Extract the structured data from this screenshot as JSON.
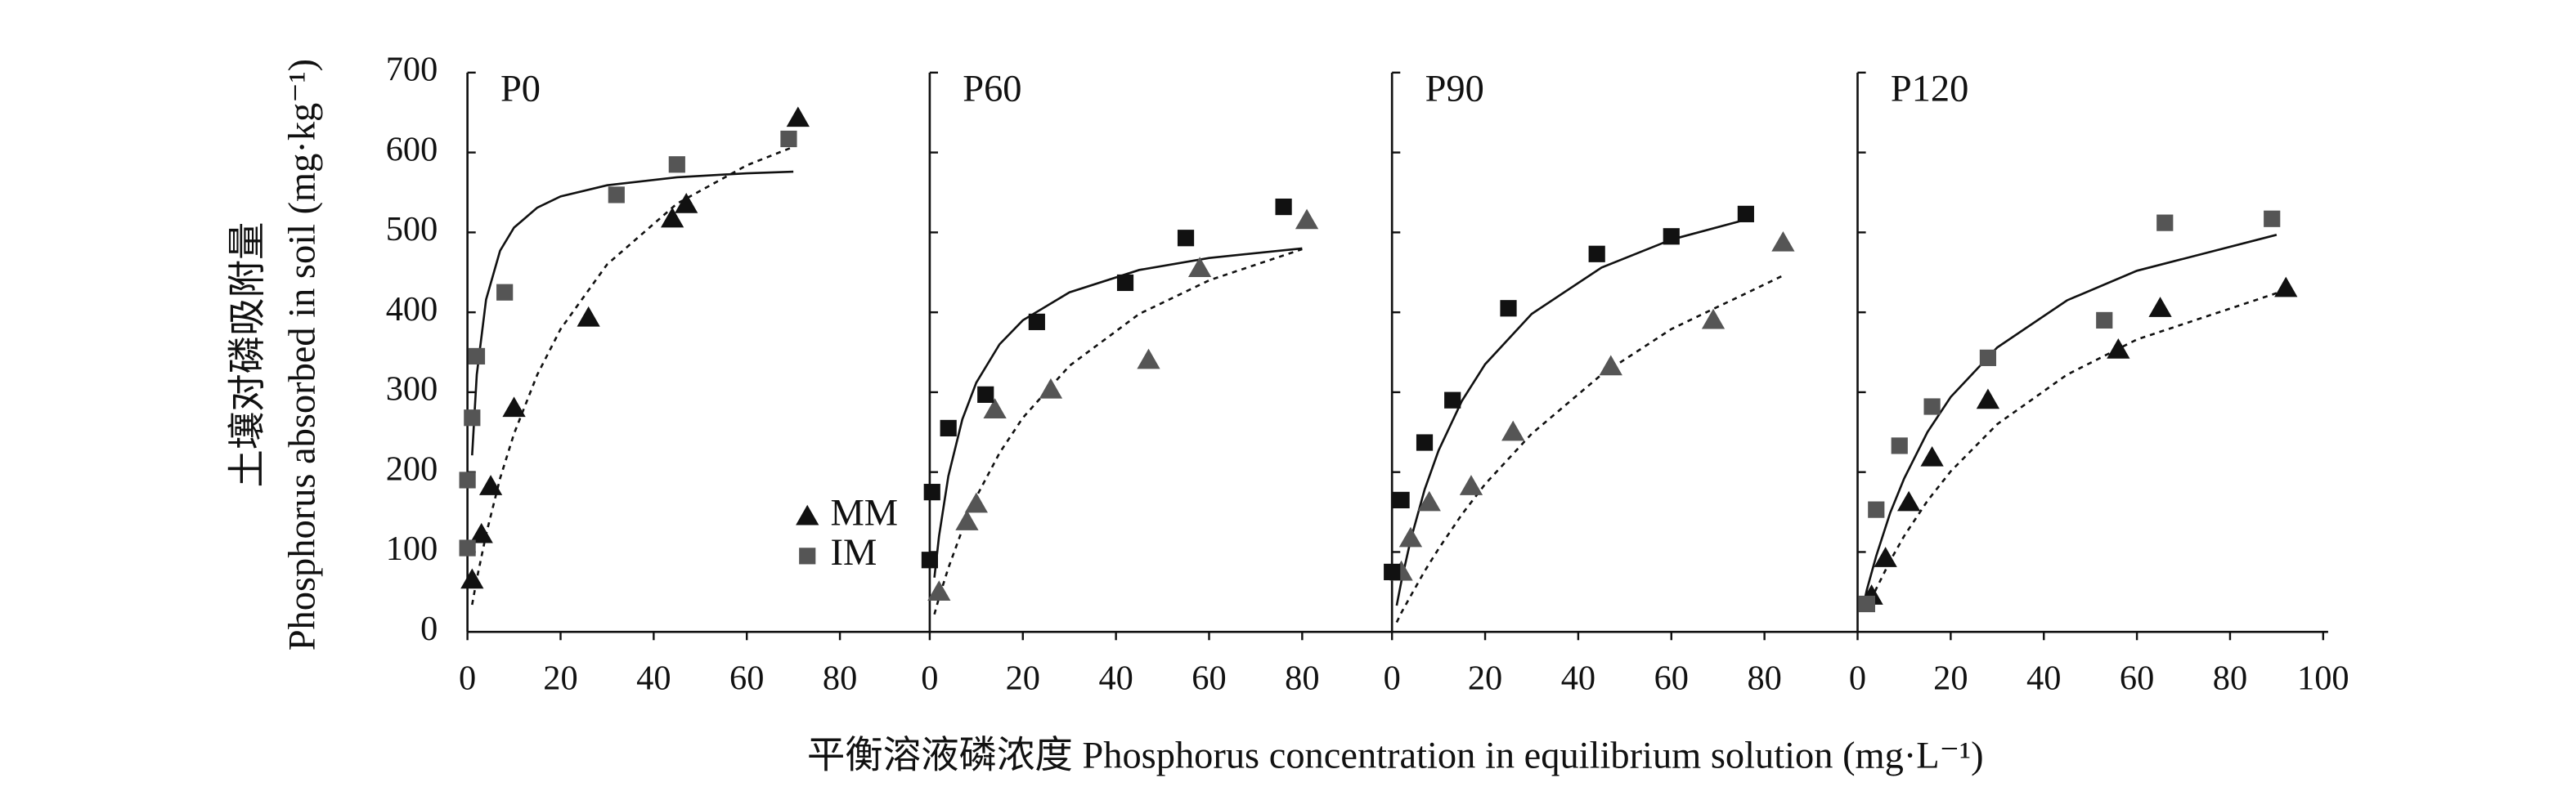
{
  "figure": {
    "ylabel": [
      "土壤对磷吸附量",
      "Phosphorus absorbed in soil (mg·kg⁻¹)"
    ],
    "xlabel": "平衡溶液磷浓度 Phosphorus concentration in equilibrium solution (mg·L⁻¹)"
  },
  "chart_data": [
    {
      "type": "scatter",
      "title": "P0",
      "xlim": [
        0,
        100
      ],
      "xticks": [
        0,
        20,
        40,
        60,
        80
      ],
      "ylim": [
        0,
        700
      ],
      "yticks": [
        0,
        100,
        200,
        300,
        400,
        500,
        600,
        700
      ],
      "legend": "lower center",
      "series": [
        {
          "name": "MM",
          "marker": "triangle",
          "color": "#111111",
          "x": [
            1,
            3,
            5,
            10,
            26,
            44,
            47,
            71
          ],
          "values": [
            65,
            122,
            182,
            280,
            393,
            517,
            535,
            643
          ]
        },
        {
          "name": "IM",
          "marker": "square",
          "color": "#555555",
          "x": [
            0,
            1,
            2,
            0,
            8,
            32,
            45,
            69
          ],
          "values": [
            190,
            268,
            345,
            105,
            425,
            547,
            585,
            617
          ]
        }
      ],
      "fits": [
        {
          "style": "solid",
          "x": [
            1,
            2,
            4,
            7,
            10,
            15,
            20,
            30,
            45,
            60,
            70
          ],
          "values": [
            221,
            322,
            416,
            477,
            506,
            531,
            545,
            559,
            569,
            574,
            576
          ]
        },
        {
          "style": "dashed",
          "x": [
            1,
            2,
            4,
            7,
            10,
            15,
            20,
            30,
            45,
            60,
            70
          ],
          "values": [
            34,
            66,
            122,
            192,
            248,
            322,
            379,
            460,
            536,
            584,
            607
          ]
        }
      ]
    },
    {
      "type": "scatter",
      "title": "P60",
      "xlim": [
        0,
        100
      ],
      "xticks": [
        0,
        20,
        40,
        60,
        80
      ],
      "ylim": [
        0,
        700
      ],
      "yticks": [
        0,
        100,
        200,
        300,
        400,
        500,
        600,
        700
      ],
      "series": [
        {
          "marker": "triangle",
          "color": "#555555",
          "x": [
            2,
            8,
            10,
            14,
            26,
            47,
            58,
            81
          ],
          "values": [
            50,
            138,
            160,
            278,
            303,
            340,
            455,
            515
          ]
        },
        {
          "marker": "square",
          "color": "#111111",
          "x": [
            0,
            0.5,
            4,
            12,
            23,
            42,
            55,
            76
          ],
          "values": [
            90,
            175,
            255,
            297,
            388,
            437,
            493,
            532
          ]
        }
      ],
      "fits": [
        {
          "style": "solid",
          "x": [
            1,
            2,
            4,
            7,
            10,
            15,
            20,
            30,
            45,
            60,
            80
          ],
          "values": [
            68,
            120,
            195,
            266,
            312,
            360,
            390,
            425,
            453,
            468,
            480
          ]
        },
        {
          "style": "dashed",
          "x": [
            1,
            2,
            4,
            7,
            10,
            15,
            20,
            30,
            45,
            60,
            80
          ],
          "values": [
            22,
            43,
            80,
            128,
            169,
            224,
            268,
            333,
            398,
            440,
            479
          ]
        }
      ]
    },
    {
      "type": "scatter",
      "title": "P90",
      "xlim": [
        0,
        100
      ],
      "xticks": [
        0,
        20,
        40,
        60,
        80
      ],
      "ylim": [
        0,
        700
      ],
      "yticks": [
        0,
        100,
        200,
        300,
        400,
        500,
        600,
        700
      ],
      "series": [
        {
          "marker": "triangle",
          "color": "#555555",
          "x": [
            2,
            4,
            8,
            17,
            26,
            47,
            69,
            84
          ],
          "values": [
            75,
            117,
            162,
            182,
            250,
            332,
            390,
            487
          ]
        },
        {
          "marker": "square",
          "color": "#111111",
          "x": [
            0,
            2,
            7,
            13,
            25,
            44,
            60,
            76
          ],
          "values": [
            75,
            165,
            237,
            290,
            405,
            473,
            495,
            523
          ]
        }
      ],
      "fits": [
        {
          "style": "solid",
          "x": [
            1,
            2,
            4,
            7,
            10,
            15,
            20,
            30,
            45,
            60,
            76
          ],
          "values": [
            33,
            63,
            115,
            178,
            227,
            289,
            335,
            398,
            456,
            491,
            516
          ]
        },
        {
          "style": "dashed",
          "x": [
            1,
            2,
            4,
            7,
            10,
            15,
            20,
            30,
            45,
            60,
            84
          ],
          "values": [
            12,
            24,
            45,
            76,
            104,
            147,
            185,
            248,
            322,
            379,
            446
          ]
        }
      ]
    },
    {
      "type": "scatter",
      "title": "P120",
      "xlim": [
        0,
        100
      ],
      "xticks": [
        0,
        20,
        40,
        60,
        80,
        100
      ],
      "ylim": [
        0,
        700
      ],
      "yticks": [
        0,
        100,
        200,
        300,
        400,
        500,
        600,
        700
      ],
      "series": [
        {
          "marker": "triangle",
          "color": "#111111",
          "x": [
            3,
            6,
            11,
            16,
            28,
            56,
            65,
            92
          ],
          "values": [
            45,
            92,
            162,
            218,
            290,
            353,
            405,
            430
          ]
        },
        {
          "marker": "square",
          "color": "#555555",
          "x": [
            2,
            4,
            9,
            16,
            28,
            53,
            66,
            89
          ],
          "values": [
            35,
            153,
            233,
            282,
            343,
            390,
            512,
            517
          ]
        }
      ],
      "fits": [
        {
          "style": "solid",
          "x": [
            1,
            2,
            4,
            7,
            10,
            15,
            20,
            30,
            45,
            60,
            90
          ],
          "values": [
            27,
            53,
            95,
            149,
            192,
            250,
            294,
            356,
            415,
            452,
            497
          ]
        },
        {
          "style": "dashed",
          "x": [
            2,
            4,
            7,
            10,
            15,
            20,
            30,
            45,
            60,
            90
          ],
          "values": [
            28,
            54,
            89,
            120,
            164,
            201,
            260,
            322,
            366,
            424
          ]
        }
      ]
    }
  ]
}
